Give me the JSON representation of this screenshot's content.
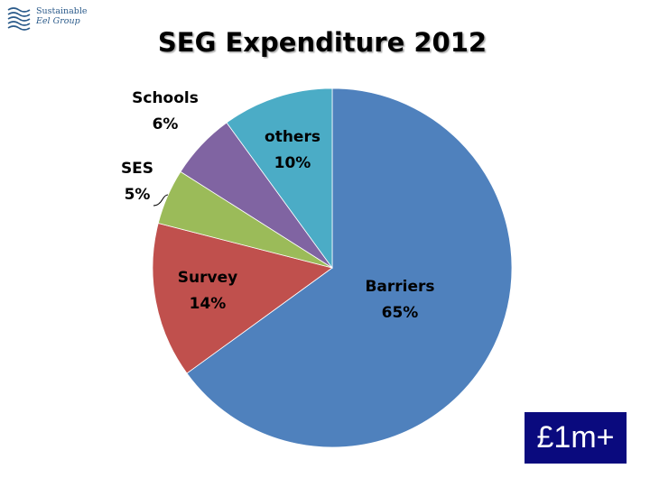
{
  "logo": {
    "line1": "Sustainable",
    "line2": "Eel Group"
  },
  "badge": "£1m+",
  "colors": {
    "barriers": "#4f81bd",
    "survey": "#c0504d",
    "ses": "#9bbb59",
    "schools": "#8064a2",
    "others": "#4bacc6",
    "badge_bg": "#0a0a7e"
  },
  "chart_data": {
    "type": "pie",
    "title": "SEG Expenditure 2012",
    "slices": [
      {
        "name": "Barriers",
        "value": 65,
        "label": "65%",
        "color": "#4f81bd"
      },
      {
        "name": "Survey",
        "value": 14,
        "label": "14%",
        "color": "#c0504d"
      },
      {
        "name": "SES",
        "value": 5,
        "label": "5%",
        "color": "#9bbb59"
      },
      {
        "name": "Schools",
        "value": 6,
        "label": "6%",
        "color": "#8064a2"
      },
      {
        "name": "others",
        "value": 10,
        "label": "10%",
        "color": "#4bacc6"
      }
    ]
  }
}
